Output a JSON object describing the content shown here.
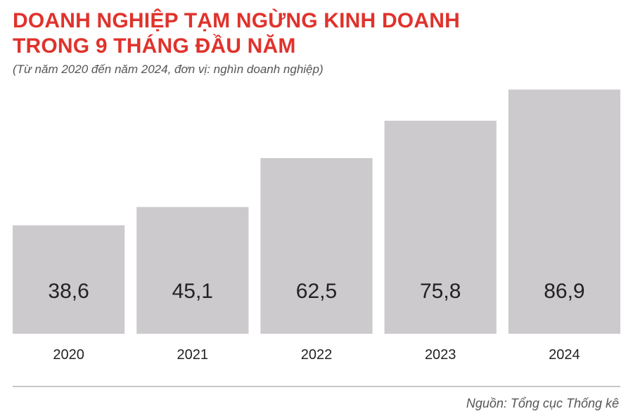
{
  "title_line1": "DOANH NGHIỆP TẠM NGỪNG KINH DOANH",
  "title_line2": "TRONG 9 THÁNG ĐẦU NĂM",
  "subtitle": "(Từ năm 2020 đến năm 2024, đơn vị: nghìn doanh nghiệp)",
  "source": "Nguồn: Tổng cục Thống kê",
  "chart_data": {
    "type": "bar",
    "title": "DOANH NGHIỆP TẠM NGỪNG KINH DOANH TRONG 9 THÁNG ĐẦU NĂM",
    "subtitle": "(Từ năm 2020 đến năm 2024, đơn vị: nghìn doanh nghiệp)",
    "categories": [
      "2020",
      "2021",
      "2022",
      "2023",
      "2024"
    ],
    "values": [
      38.6,
      45.1,
      62.5,
      75.8,
      86.9
    ],
    "value_labels": [
      "38,6",
      "45,1",
      "62,5",
      "75,8",
      "86,9"
    ],
    "ylim": [
      0,
      100
    ],
    "grid": false,
    "legend": "none",
    "bar_color": "#cdcacd",
    "baseline_color": "#c8c8c8"
  }
}
